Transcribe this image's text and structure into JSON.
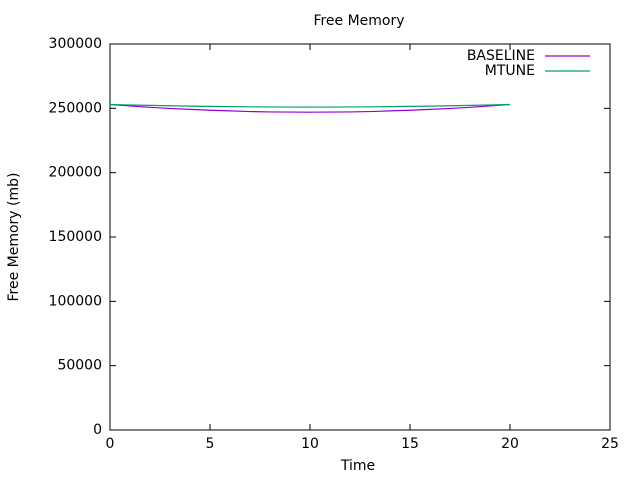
{
  "chart_data": {
    "type": "line",
    "title": "Free Memory",
    "x_label": "Time",
    "y_label": "Free Memory (mb)",
    "x": [
      0,
      1,
      2,
      3,
      4,
      5,
      6,
      7,
      8,
      9,
      10,
      11,
      12,
      13,
      14,
      15,
      16,
      17,
      18,
      19,
      20
    ],
    "series": [
      {
        "name": "BASELINE",
        "color": "#9400d3",
        "values": [
          253000,
          251900,
          250800,
          249900,
          249200,
          248500,
          248000,
          247500,
          247200,
          247100,
          247000,
          247100,
          247200,
          247500,
          248000,
          248500,
          249200,
          249900,
          250800,
          251900,
          253000
        ]
      },
      {
        "name": "MTUNE",
        "color": "#009e73",
        "values": [
          253000,
          252600,
          252300,
          252000,
          251700,
          251500,
          251300,
          251200,
          251100,
          251000,
          251000,
          251000,
          251100,
          251200,
          251300,
          251500,
          251700,
          252000,
          252300,
          252600,
          253000
        ]
      }
    ],
    "xlim": [
      0,
      25
    ],
    "xticks": [
      0,
      5,
      10,
      15,
      20,
      25
    ],
    "ylim": [
      0,
      300000
    ],
    "yticks": [
      0,
      50000,
      100000,
      150000,
      200000,
      250000,
      300000
    ],
    "legend": "top-right",
    "grid": false
  }
}
